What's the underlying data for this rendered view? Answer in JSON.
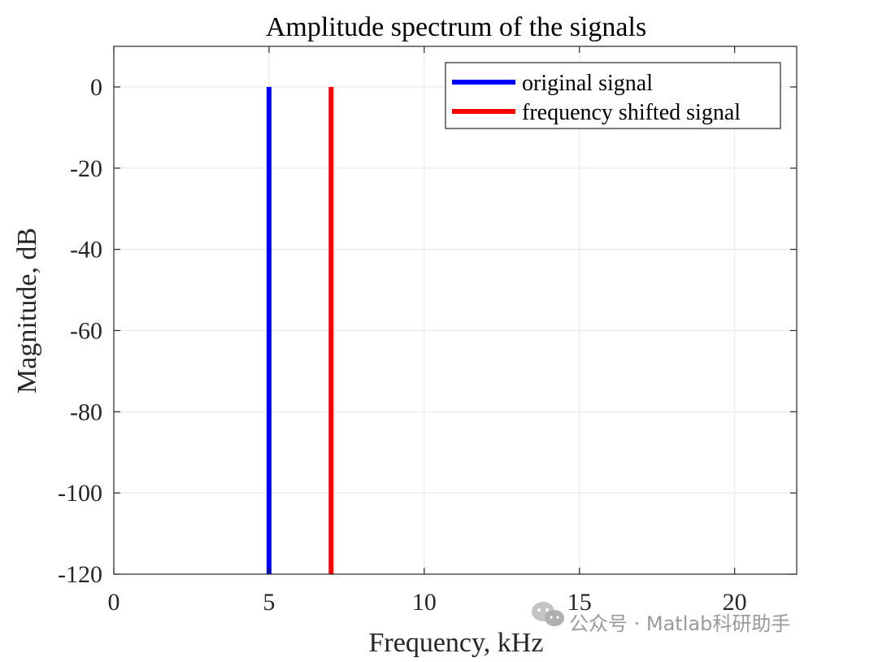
{
  "chart_data": {
    "type": "line",
    "title": "Amplitude spectrum of the signals",
    "xlabel": "Frequency, kHz",
    "ylabel": "Magnitude, dB",
    "xlim": [
      0,
      22
    ],
    "ylim": [
      -120,
      10
    ],
    "xticks": [
      0,
      5,
      10,
      15,
      20
    ],
    "yticks": [
      0,
      -20,
      -40,
      -60,
      -80,
      -100,
      -120
    ],
    "xtick_labels": [
      "0",
      "5",
      "10",
      "15",
      "20"
    ],
    "ytick_labels": [
      "0",
      "-20",
      "-40",
      "-60",
      "-80",
      "-100",
      "-120"
    ],
    "grid": true,
    "legend_location": "top-right",
    "series": [
      {
        "name": "original signal",
        "color": "#0000ff",
        "x": [
          5,
          5
        ],
        "y": [
          -120,
          0
        ]
      },
      {
        "name": "frequency shifted signal",
        "color": "#ff0000",
        "x": [
          7,
          7
        ],
        "y": [
          -120,
          0
        ]
      }
    ]
  },
  "watermark": {
    "icon": "wechat-icon",
    "text": "公众号 · Matlab科研助手"
  }
}
